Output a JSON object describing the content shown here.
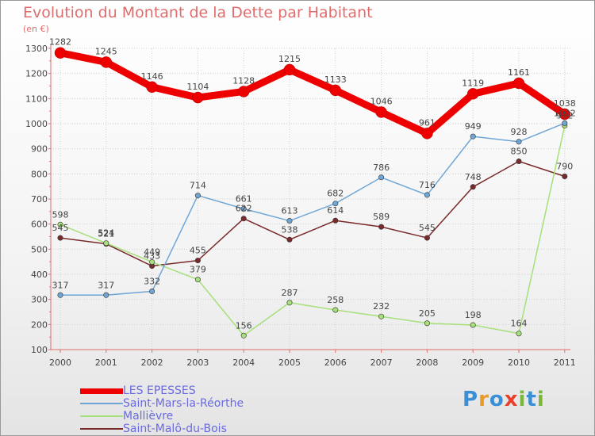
{
  "title": "Evolution du Montant de la Dette par Habitant",
  "unit": "(en €)",
  "brand": "Proxiti",
  "colors": {
    "title": "#e06d6d",
    "axis": "#e06d6d",
    "grid": "#d0d0d0",
    "label": "#444444"
  },
  "chart_data": {
    "type": "line",
    "title": "Evolution du Montant de la Dette par Habitant",
    "ylabel": "(en €)",
    "xlabel": "",
    "x": [
      "2000",
      "2001",
      "2002",
      "2003",
      "2004",
      "2005",
      "2006",
      "2007",
      "2008",
      "2009",
      "2010",
      "2011"
    ],
    "ylim": [
      100,
      1300
    ],
    "yticks": [
      "100",
      "200",
      "300",
      "400",
      "500",
      "600",
      "700",
      "800",
      "900",
      "1000",
      "1100",
      "1200",
      "1300"
    ],
    "grid": true,
    "legend_position": "bottom-left",
    "series": [
      {
        "name": "LES EPESSES",
        "color": "#ee0000",
        "values": [
          1282,
          1245,
          1146,
          1104,
          1128,
          1215,
          1133,
          1046,
          961,
          1119,
          1161,
          1038
        ],
        "labels": [
          "1282",
          "1245",
          "1146",
          "1104",
          "1128",
          "1215",
          "1133",
          "1046",
          "961",
          "1119",
          "1161",
          "1038"
        ]
      },
      {
        "name": "Saint-Mars-la-Réorthe",
        "color": "#6fa6d6",
        "values": [
          317,
          317,
          332,
          714,
          661,
          613,
          682,
          786,
          716,
          949,
          928,
          1002
        ],
        "labels": [
          "317",
          "317",
          "332",
          "714",
          "661",
          "613",
          "682",
          "786",
          "716",
          "949",
          "928",
          "1002"
        ]
      },
      {
        "name": "Mallièvre",
        "color": "#a6e07a",
        "values": [
          598,
          524,
          449,
          379,
          156,
          287,
          258,
          232,
          205,
          198,
          164,
          992
        ],
        "labels": [
          "598",
          "524",
          "449",
          "379",
          "156",
          "287",
          "258",
          "232",
          "205",
          "198",
          "164",
          "992"
        ]
      },
      {
        "name": "Saint-Malô-du-Bois",
        "color": "#7a2a2a",
        "values": [
          545,
          521,
          433,
          455,
          622,
          538,
          614,
          589,
          545,
          748,
          850,
          790
        ],
        "labels": [
          "545",
          "521",
          "433",
          "455",
          "622",
          "538",
          "614",
          "589",
          "545",
          "748",
          "850",
          "790"
        ]
      }
    ]
  }
}
